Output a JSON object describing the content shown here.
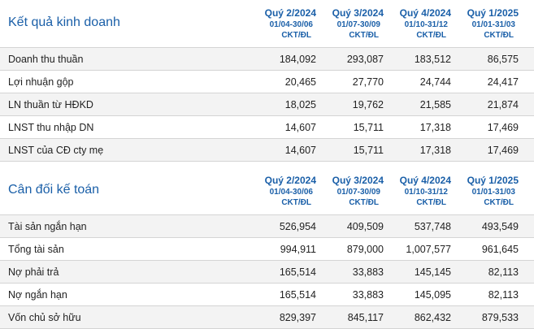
{
  "business_results": {
    "title": "Kết quả kinh doanh",
    "periods": [
      {
        "quarter": "Quý 2/2024",
        "range": "01/04-30/06",
        "unit": "CKT/ĐL"
      },
      {
        "quarter": "Quý 3/2024",
        "range": "01/07-30/09",
        "unit": "CKT/ĐL"
      },
      {
        "quarter": "Quý 4/2024",
        "range": "01/10-31/12",
        "unit": "CKT/ĐL"
      },
      {
        "quarter": "Quý 1/2025",
        "range": "01/01-31/03",
        "unit": "CKT/ĐL"
      }
    ],
    "rows": [
      {
        "label": "Doanh thu thuần",
        "values": [
          "184,092",
          "293,087",
          "183,512",
          "86,575"
        ]
      },
      {
        "label": "Lợi nhuận gộp",
        "values": [
          "20,465",
          "27,770",
          "24,744",
          "24,417"
        ]
      },
      {
        "label": "LN thuần từ HĐKD",
        "values": [
          "18,025",
          "19,762",
          "21,585",
          "21,874"
        ]
      },
      {
        "label": "LNST thu nhập DN",
        "values": [
          "14,607",
          "15,711",
          "17,318",
          "17,469"
        ]
      },
      {
        "label": "LNST của CĐ cty mẹ",
        "values": [
          "14,607",
          "15,711",
          "17,318",
          "17,469"
        ]
      }
    ]
  },
  "balance_sheet": {
    "title": "Cân đối kế toán",
    "periods": [
      {
        "quarter": "Quý 2/2024",
        "range": "01/04-30/06",
        "unit": "CKT/ĐL"
      },
      {
        "quarter": "Quý 3/2024",
        "range": "01/07-30/09",
        "unit": "CKT/ĐL"
      },
      {
        "quarter": "Quý 4/2024",
        "range": "01/10-31/12",
        "unit": "CKT/ĐL"
      },
      {
        "quarter": "Quý 1/2025",
        "range": "01/01-31/03",
        "unit": "CKT/ĐL"
      }
    ],
    "rows": [
      {
        "label": "Tài sản ngắn hạn",
        "values": [
          "526,954",
          "409,509",
          "537,748",
          "493,549"
        ]
      },
      {
        "label": "Tổng tài sản",
        "values": [
          "994,911",
          "879,000",
          "1,007,577",
          "961,645"
        ]
      },
      {
        "label": "Nợ phải trả",
        "values": [
          "165,514",
          "33,883",
          "145,145",
          "82,113"
        ]
      },
      {
        "label": "Nợ ngắn hạn",
        "values": [
          "165,514",
          "33,883",
          "145,095",
          "82,113"
        ]
      },
      {
        "label": "Vốn chủ sở hữu",
        "values": [
          "829,397",
          "845,117",
          "862,432",
          "879,533"
        ]
      }
    ]
  }
}
